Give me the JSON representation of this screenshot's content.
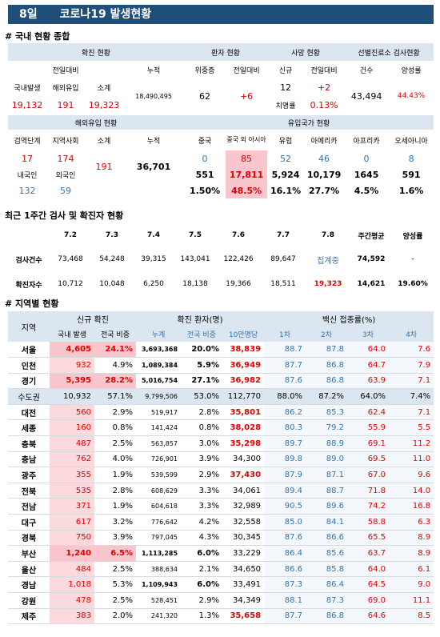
{
  "title": {
    "day": "8일",
    "text": "코로나19 발생현황"
  },
  "sec1": "# 국내 현황 종합",
  "summary": {
    "h_confirm": "확진 현황",
    "h_patient": "환자 현황",
    "h_death": "사망 현황",
    "h_test": "선별진료소 검사현황",
    "h_prevday": "전일대비",
    "h_total": "누적",
    "h_hosp": "위중증",
    "h_pprev": "전일대비",
    "h_new": "신규",
    "h_dprev": "전일대비",
    "h_count": "건수",
    "h_pos": "양성률",
    "l_domestic": "국내발생",
    "l_import": "해외유입",
    "l_sum": "소계",
    "domestic": "19,132",
    "import": "191",
    "sum": "19,323",
    "total": "18,490,495",
    "hosp": "62",
    "hosp_change": "+6",
    "death_new": "12",
    "death_change": "+2",
    "fatality_label": "치명률",
    "fatality": "0.13%",
    "tests": "43,494",
    "positive": "44.43%"
  },
  "imported": {
    "h_import": "해외유입 현황",
    "h_country": "유입국가 현황",
    "h_stage": "검역단계",
    "h_community": "지역사회",
    "h_sub": "소계",
    "h_total": "누적",
    "countries": [
      "중국",
      "중국 외 아시아",
      "유럽",
      "아메리카",
      "아프리카",
      "오세아니아"
    ],
    "quarantine": "17",
    "community": "174",
    "subtotal": "191",
    "total": "36,701",
    "country_vals": [
      "0",
      "85",
      "52",
      "46",
      "0",
      "8"
    ],
    "l_kor": "내국인",
    "l_for": "외국인",
    "kor": "132",
    "for": "59",
    "country_cum": [
      "551",
      "17,811",
      "5,924",
      "10,179",
      "1645",
      "591"
    ],
    "country_pct": [
      "1.50%",
      "48.5%",
      "16.1%",
      "27.7%",
      "4.5%",
      "1.6%"
    ]
  },
  "sec2": "최근 1주간 검사 및 확진자 현황",
  "weekly": {
    "dates": [
      "7.2",
      "7.3",
      "7.4",
      "7.5",
      "7.6",
      "7.7",
      "7.8"
    ],
    "h_avg": "주간평균",
    "h_pos": "양성률",
    "l_tests": "검사건수",
    "l_confirm": "확진자수",
    "tests": [
      "73,468",
      "54,248",
      "39,315",
      "143,041",
      "122,426",
      "89,647",
      "집계중"
    ],
    "tests_avg": "74,592",
    "tests_pos": "-",
    "confirm": [
      "10,712",
      "10,048",
      "6,250",
      "18,138",
      "19,366",
      "18,511",
      "19,323"
    ],
    "confirm_avg": "14,621",
    "confirm_pos": "19.60%"
  },
  "sec3": "# 지역별 현황",
  "regional": {
    "h_region": "지역",
    "h_new": "신규 확진",
    "h_cum": "확진 환자(명)",
    "h_vax": "백신 접종률(%)",
    "h_local": "국내 발생",
    "h_share": "전국 비중",
    "h_total": "누계",
    "h_share2": "전국 비중",
    "h_per": "10만명당",
    "h_d1": "1차",
    "h_d2": "2차",
    "h_d3": "3차",
    "h_d4": "4차",
    "rows": [
      {
        "r": "서울",
        "n": "4,605",
        "s": "24.1%",
        "t": "3,693,368",
        "ts": "20.0%",
        "p": "38,839",
        "v1": "88.7",
        "v2": "87.8",
        "v3": "64.0",
        "v4": "7.6"
      },
      {
        "r": "인천",
        "n": "932",
        "s": "4.9%",
        "t": "1,089,384",
        "ts": "5.9%",
        "p": "36,949",
        "v1": "87.7",
        "v2": "86.8",
        "v3": "64.7",
        "v4": "7.9"
      },
      {
        "r": "경기",
        "n": "5,395",
        "s": "28.2%",
        "t": "5,016,754",
        "ts": "27.1%",
        "p": "36,982",
        "v1": "87.6",
        "v2": "86.8",
        "v3": "63.9",
        "v4": "7.1"
      },
      {
        "r": "수도권",
        "n": "10,932",
        "s": "57.1%",
        "t": "9,799,506",
        "ts": "53.0%",
        "p": "112,770",
        "v1": "88.0%",
        "v2": "87.2%",
        "v3": "64.0%",
        "v4": "7.4%"
      },
      {
        "r": "대전",
        "n": "560",
        "s": "2.9%",
        "t": "519,917",
        "ts": "2.8%",
        "p": "35,801",
        "v1": "86.2",
        "v2": "85.3",
        "v3": "62.4",
        "v4": "7.1"
      },
      {
        "r": "세종",
        "n": "160",
        "s": "0.8%",
        "t": "141,424",
        "ts": "0.8%",
        "p": "38,028",
        "v1": "80.3",
        "v2": "79.2",
        "v3": "55.9",
        "v4": "5.5"
      },
      {
        "r": "충북",
        "n": "487",
        "s": "2.5%",
        "t": "563,857",
        "ts": "3.0%",
        "p": "35,298",
        "v1": "89.7",
        "v2": "88.9",
        "v3": "69.1",
        "v4": "11.2"
      },
      {
        "r": "충남",
        "n": "762",
        "s": "4.0%",
        "t": "726,901",
        "ts": "3.9%",
        "p": "34,300",
        "v1": "89.8",
        "v2": "89.0",
        "v3": "69.5",
        "v4": "11.0"
      },
      {
        "r": "광주",
        "n": "355",
        "s": "1.9%",
        "t": "539,599",
        "ts": "2.9%",
        "p": "37,430",
        "v1": "87.9",
        "v2": "87.1",
        "v3": "67.0",
        "v4": "9.6"
      },
      {
        "r": "전북",
        "n": "535",
        "s": "2.8%",
        "t": "608,629",
        "ts": "3.3%",
        "p": "34,061",
        "v1": "89.4",
        "v2": "88.7",
        "v3": "71.8",
        "v4": "14.0"
      },
      {
        "r": "전남",
        "n": "371",
        "s": "1.9%",
        "t": "604,618",
        "ts": "3.3%",
        "p": "32,989",
        "v1": "90.5",
        "v2": "89.6",
        "v3": "74.2",
        "v4": "16.8"
      },
      {
        "r": "대구",
        "n": "617",
        "s": "3.2%",
        "t": "776,642",
        "ts": "4.2%",
        "p": "32,558",
        "v1": "85.0",
        "v2": "84.1",
        "v3": "58.8",
        "v4": "6.3"
      },
      {
        "r": "경북",
        "n": "750",
        "s": "3.9%",
        "t": "797,045",
        "ts": "4.3%",
        "p": "30,345",
        "v1": "87.6",
        "v2": "86.6",
        "v3": "65.5",
        "v4": "8.9"
      },
      {
        "r": "부산",
        "n": "1,240",
        "s": "6.5%",
        "t": "1,113,285",
        "ts": "6.0%",
        "p": "33,229",
        "v1": "86.4",
        "v2": "85.6",
        "v3": "63.7",
        "v4": "8.9"
      },
      {
        "r": "울산",
        "n": "484",
        "s": "2.5%",
        "t": "388,634",
        "ts": "2.1%",
        "p": "34,650",
        "v1": "86.6",
        "v2": "85.8",
        "v3": "64.0",
        "v4": "6.1"
      },
      {
        "r": "경남",
        "n": "1,018",
        "s": "5.3%",
        "t": "1,109,943",
        "ts": "6.0%",
        "p": "33,491",
        "v1": "87.3",
        "v2": "86.4",
        "v3": "64.5",
        "v4": "9.0"
      },
      {
        "r": "강원",
        "n": "478",
        "s": "2.5%",
        "t": "528,451",
        "ts": "2.9%",
        "p": "34,349",
        "v1": "88.1",
        "v2": "87.3",
        "v3": "69.0",
        "v4": "11.1"
      },
      {
        "r": "제주",
        "n": "383",
        "s": "2.0%",
        "t": "241,320",
        "ts": "1.3%",
        "p": "35,658",
        "v1": "87.7",
        "v2": "86.8",
        "v3": "64.6",
        "v4": "8.5"
      }
    ]
  }
}
